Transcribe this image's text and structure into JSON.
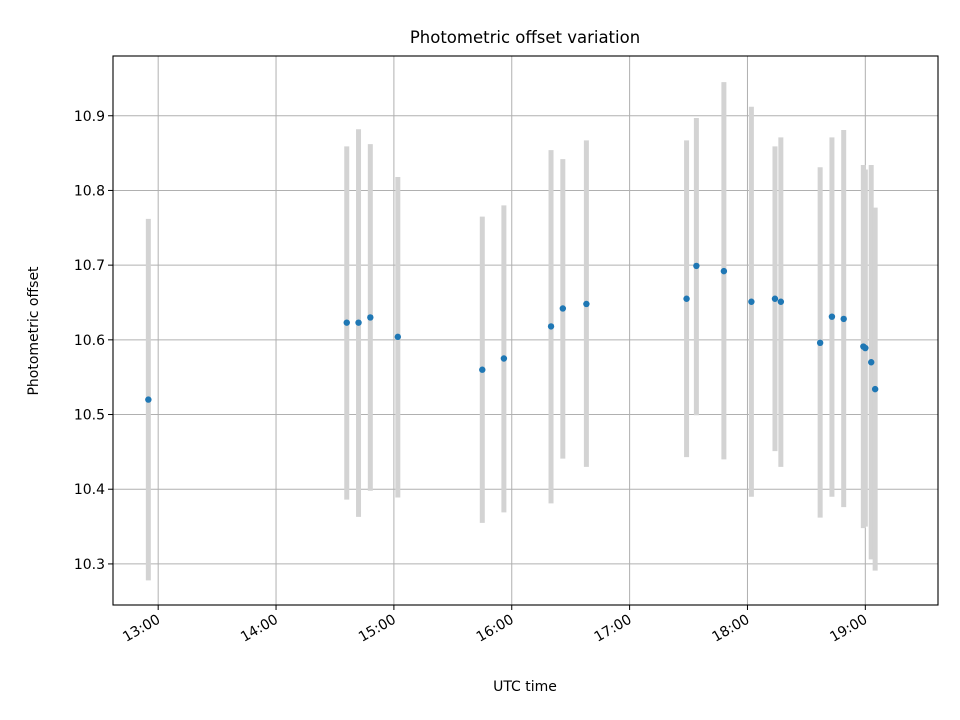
{
  "chart_data": {
    "type": "scatter",
    "title": "Photometric offset variation",
    "xlabel": "UTC time",
    "ylabel": "Photometric offset",
    "x_axis_type": "time",
    "xlim": [
      "12:37",
      "19:37"
    ],
    "ylim": [
      10.245,
      10.98
    ],
    "x_ticks": [
      "13:00",
      "14:00",
      "15:00",
      "16:00",
      "17:00",
      "18:00",
      "19:00"
    ],
    "y_ticks": [
      "10.3",
      "10.4",
      "10.5",
      "10.6",
      "10.7",
      "10.8",
      "10.9"
    ],
    "grid": true,
    "legend": "none",
    "marker_color": "#1f77b4",
    "errorbar_color": "#d3d3d3",
    "points": [
      {
        "x": "12:55",
        "y": 10.52,
        "ylo": 10.278,
        "yhi": 10.762
      },
      {
        "x": "14:36",
        "y": 10.623,
        "ylo": 10.386,
        "yhi": 10.859
      },
      {
        "x": "14:42",
        "y": 10.623,
        "ylo": 10.363,
        "yhi": 10.882
      },
      {
        "x": "14:48",
        "y": 10.63,
        "ylo": 10.398,
        "yhi": 10.862
      },
      {
        "x": "15:02",
        "y": 10.604,
        "ylo": 10.389,
        "yhi": 10.818
      },
      {
        "x": "15:45",
        "y": 10.56,
        "ylo": 10.355,
        "yhi": 10.765
      },
      {
        "x": "15:56",
        "y": 10.575,
        "ylo": 10.369,
        "yhi": 10.78
      },
      {
        "x": "16:20",
        "y": 10.618,
        "ylo": 10.381,
        "yhi": 10.854
      },
      {
        "x": "16:26",
        "y": 10.642,
        "ylo": 10.441,
        "yhi": 10.842
      },
      {
        "x": "16:38",
        "y": 10.648,
        "ylo": 10.43,
        "yhi": 10.867
      },
      {
        "x": "17:29",
        "y": 10.655,
        "ylo": 10.443,
        "yhi": 10.867
      },
      {
        "x": "17:34",
        "y": 10.699,
        "ylo": 10.499,
        "yhi": 10.897
      },
      {
        "x": "17:48",
        "y": 10.692,
        "ylo": 10.44,
        "yhi": 10.945
      },
      {
        "x": "18:02",
        "y": 10.651,
        "ylo": 10.39,
        "yhi": 10.912
      },
      {
        "x": "18:14",
        "y": 10.655,
        "ylo": 10.451,
        "yhi": 10.859
      },
      {
        "x": "18:17",
        "y": 10.651,
        "ylo": 10.43,
        "yhi": 10.871
      },
      {
        "x": "18:37",
        "y": 10.596,
        "ylo": 10.362,
        "yhi": 10.831
      },
      {
        "x": "18:43",
        "y": 10.631,
        "ylo": 10.39,
        "yhi": 10.871
      },
      {
        "x": "18:49",
        "y": 10.628,
        "ylo": 10.376,
        "yhi": 10.881
      },
      {
        "x": "18:59",
        "y": 10.591,
        "ylo": 10.348,
        "yhi": 10.834
      },
      {
        "x": "19:00",
        "y": 10.589,
        "ylo": 10.35,
        "yhi": 10.828
      },
      {
        "x": "19:03",
        "y": 10.57,
        "ylo": 10.306,
        "yhi": 10.834
      },
      {
        "x": "19:05",
        "y": 10.534,
        "ylo": 10.291,
        "yhi": 10.777
      }
    ]
  }
}
